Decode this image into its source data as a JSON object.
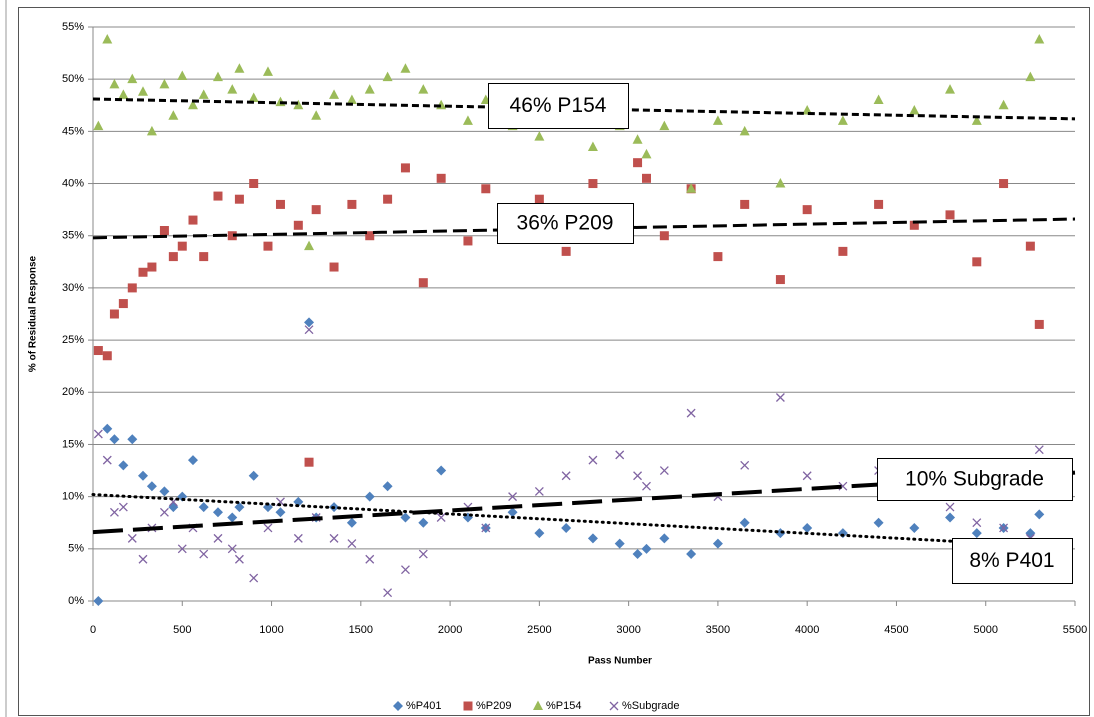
{
  "chart_data": {
    "type": "scatter",
    "xlabel": "Pass Number",
    "ylabel": "% of Residual Response",
    "xlim": [
      0,
      5500
    ],
    "xticks": [
      0,
      500,
      1000,
      1500,
      2000,
      2500,
      3000,
      3500,
      4000,
      4500,
      5000,
      5500
    ],
    "ylim": [
      0,
      55
    ],
    "yticks": [
      {
        "value": 0,
        "label": "0%"
      },
      {
        "value": 5,
        "label": "5%"
      },
      {
        "value": 10,
        "label": "10%"
      },
      {
        "value": 15,
        "label": "15%"
      },
      {
        "value": 20,
        "label": "20%"
      },
      {
        "value": 25,
        "label": "25%"
      },
      {
        "value": 30,
        "label": "30%"
      },
      {
        "value": 35,
        "label": "35%"
      },
      {
        "value": 40,
        "label": "40%"
      },
      {
        "value": 45,
        "label": "45%"
      },
      {
        "value": 50,
        "label": "50%"
      },
      {
        "value": 55,
        "label": "55%"
      }
    ],
    "grid": true,
    "legend": "bottom",
    "x": [
      30,
      80,
      120,
      170,
      220,
      280,
      330,
      400,
      450,
      500,
      560,
      620,
      700,
      780,
      820,
      900,
      980,
      1050,
      1150,
      1210,
      1250,
      1350,
      1450,
      1550,
      1650,
      1750,
      1850,
      1950,
      2100,
      2200,
      2350,
      2500,
      2650,
      2800,
      2950,
      3050,
      3100,
      3200,
      3350,
      3500,
      3650,
      3850,
      4000,
      4200,
      4400,
      4600,
      4800,
      4950,
      5100,
      5250,
      5300
    ],
    "series": [
      {
        "name": "%P401",
        "color": "#4f81bd",
        "marker": "diamond",
        "values": [
          0,
          16.5,
          15.5,
          13,
          15.5,
          12,
          11,
          10.5,
          9,
          10,
          13.5,
          9,
          8.5,
          8,
          9,
          12,
          9,
          8.5,
          9.5,
          26.7,
          8,
          9,
          7.5,
          10,
          11,
          8,
          7.5,
          12.5,
          8,
          7,
          8.5,
          6.5,
          7,
          6,
          5.5,
          4.5,
          5,
          6,
          4.5,
          5.5,
          7.5,
          6.5,
          7,
          6.5,
          7.5,
          7,
          8,
          6.5,
          7,
          6.5,
          8.3
        ]
      },
      {
        "name": "%P209",
        "color": "#c0504d",
        "marker": "square",
        "values": [
          24,
          23.5,
          27.5,
          28.5,
          30,
          31.5,
          32,
          35.5,
          33,
          34,
          36.5,
          33,
          38.8,
          35,
          38.5,
          40,
          34,
          38,
          36,
          13.3,
          37.5,
          32,
          38,
          35,
          38.5,
          41.5,
          30.5,
          40.5,
          34.5,
          39.5,
          36,
          38.5,
          33.5,
          40,
          37.5,
          42,
          40.5,
          35,
          39.5,
          33,
          38,
          30.8,
          37.5,
          33.5,
          38,
          36,
          37,
          32.5,
          40,
          34,
          26.5
        ]
      },
      {
        "name": "%P154",
        "color": "#9bbb59",
        "marker": "triangle",
        "values": [
          45.5,
          53.8,
          49.5,
          48.5,
          50,
          48.8,
          45,
          49.5,
          46.5,
          50.3,
          47.5,
          48.5,
          50.2,
          49,
          51,
          48.2,
          50.7,
          47.8,
          47.5,
          34,
          46.5,
          48.5,
          48,
          49,
          50.2,
          51,
          49,
          47.5,
          46,
          48,
          45.5,
          44.5,
          46,
          43.5,
          45.5,
          44.2,
          42.8,
          45.5,
          39.5,
          46,
          45,
          40,
          47,
          46,
          48,
          47,
          49,
          46,
          47.5,
          50.2,
          53.8
        ]
      },
      {
        "name": "%Subgrade",
        "color": "#8064a2",
        "marker": "cross",
        "values": [
          16,
          13.5,
          8.5,
          9,
          6,
          4,
          7,
          8.5,
          9.5,
          5,
          7,
          4.5,
          6,
          5,
          4,
          2.2,
          7,
          9.5,
          6,
          26,
          8,
          6,
          5.5,
          4,
          0.8,
          3,
          4.5,
          8,
          9,
          7,
          10,
          10.5,
          12,
          13.5,
          14,
          12,
          11,
          12.5,
          18,
          10,
          13,
          19.5,
          12,
          11,
          12.5,
          10,
          9,
          7.5,
          7,
          6,
          14.5
        ]
      }
    ],
    "trendlines": [
      {
        "x": [
          0,
          5500
        ],
        "values": [
          48.1,
          46.2
        ],
        "style": "short-dash"
      },
      {
        "x": [
          0,
          5500
        ],
        "values": [
          34.8,
          36.6
        ],
        "style": "dash"
      },
      {
        "x": [
          0,
          5500
        ],
        "values": [
          6.6,
          12.3
        ],
        "style": "long-dash"
      },
      {
        "x": [
          0,
          4950
        ],
        "values": [
          10.2,
          5.6
        ],
        "style": "dot"
      }
    ],
    "annotations": [
      "46% P154",
      "36% P209",
      "10% Subgrade",
      "8% P401"
    ]
  }
}
